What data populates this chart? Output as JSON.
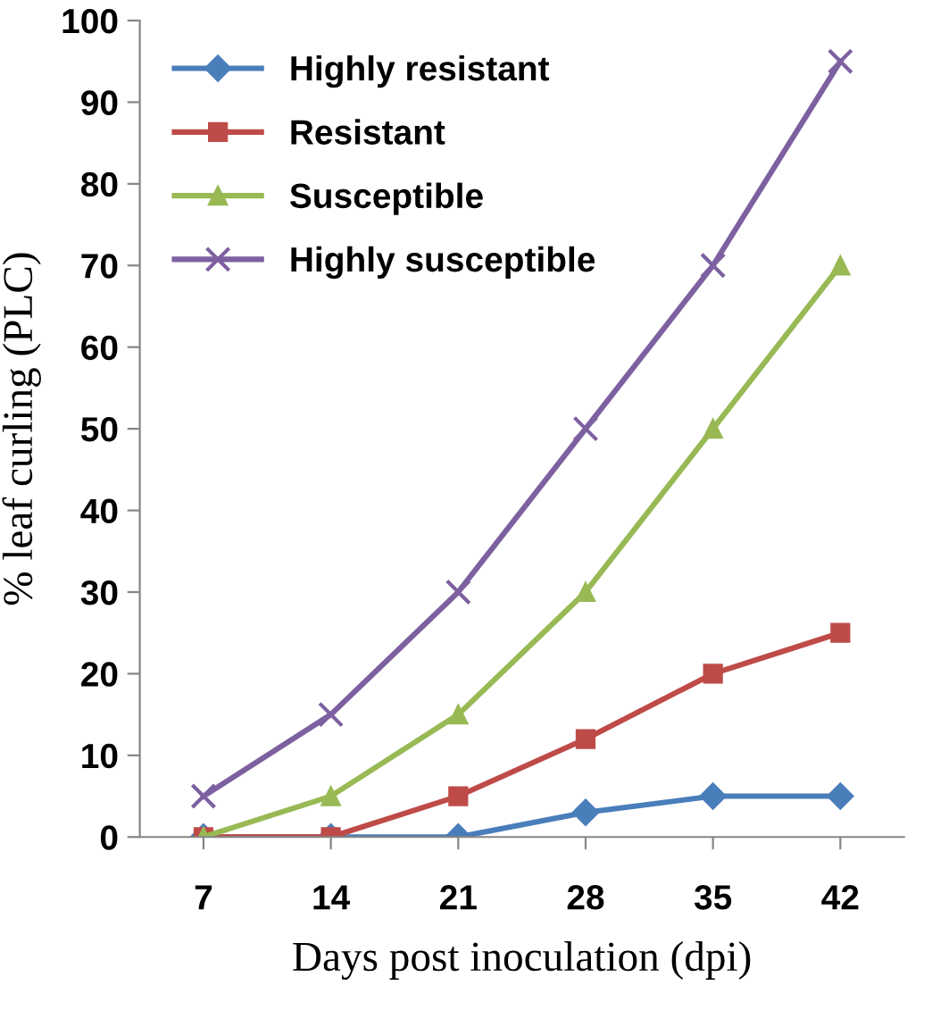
{
  "chart_data": {
    "type": "line",
    "xlabel": "Days post inoculation (dpi)",
    "ylabel": "% leaf curling (PLC)",
    "categories": [
      "7",
      "14",
      "21",
      "28",
      "35",
      "42"
    ],
    "series": [
      {
        "name": "Highly resistant",
        "color": "#4a7ebb",
        "marker": "diamond",
        "values": [
          0,
          0,
          0,
          3,
          5,
          5
        ]
      },
      {
        "name": "Resistant",
        "color": "#be4b48",
        "marker": "square",
        "values": [
          0,
          0,
          5,
          12,
          20,
          25
        ]
      },
      {
        "name": "Susceptible",
        "color": "#98b954",
        "marker": "triangle",
        "values": [
          0,
          5,
          15,
          30,
          50,
          70
        ]
      },
      {
        "name": "Highly susceptible",
        "color": "#7d60a0",
        "marker": "cross",
        "values": [
          5,
          15,
          30,
          50,
          70,
          95
        ]
      }
    ],
    "ylim": [
      0,
      100
    ],
    "yticks": [
      0,
      10,
      20,
      30,
      40,
      50,
      60,
      70,
      80,
      90,
      100
    ],
    "grid": false,
    "legend": "top left",
    "line_style": "solid"
  }
}
